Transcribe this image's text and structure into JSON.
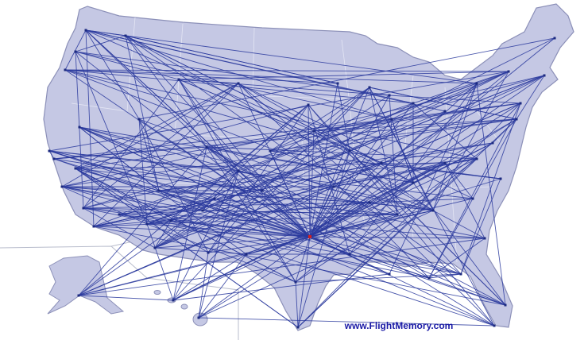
{
  "footer": {
    "url": "www.FlightMemory.com"
  }
}
